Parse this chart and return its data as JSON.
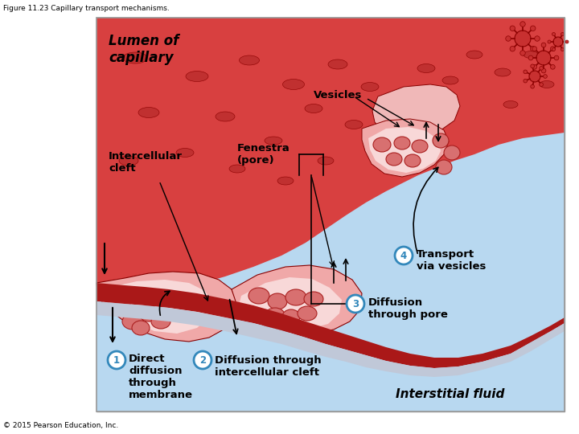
{
  "fig_title": "Figure 11.23 Capillary transport mechanisms.",
  "copyright": "© 2015 Pearson Education, Inc.",
  "bg_color": "#ffffff",
  "labels": {
    "lumen": "Lumen of\ncapillary",
    "vesicles": "Vesicles",
    "intercellular": "Intercellular\ncleft",
    "fenestra": "Fenestra\n(pore)",
    "transport4_num": "4",
    "transport4_text": "Transport\nvia vesicles",
    "diffusion3_num": "3",
    "diffusion3_text": "Diffusion\nthrough pore",
    "direct1_num": "1",
    "direct1_text": "Direct\ndiffusion\nthrough\nmembrane",
    "diffusion2_num": "2",
    "diffusion2_text": "Diffusion through\nintercellular cleft",
    "interstitial": "Interstitial fluid"
  },
  "colors": {
    "lumen_blood": "#d84040",
    "lumen_lighter": "#e87878",
    "capillary_wall_dark": "#aa1818",
    "capillary_wall_light": "#c8c8d8",
    "cell_body": "#f0a8a8",
    "cell_inner": "#f8d8d8",
    "interstitial_top": "#c0d8f0",
    "interstitial_bot": "#a8c8e8",
    "deep_red": "#8b0000",
    "vesicle_fill": "#d06868",
    "vesicle_stroke": "#aa2020",
    "circle_color": "#3388bb",
    "membrane_line": "#880000"
  }
}
